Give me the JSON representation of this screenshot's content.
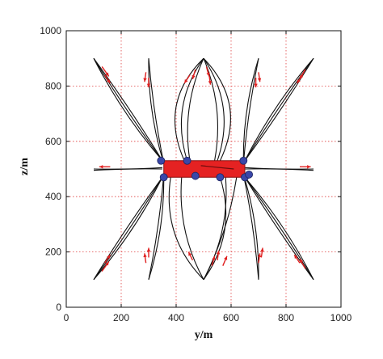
{
  "chart_data": {
    "type": "line",
    "title": "",
    "xlabel": "y/m",
    "ylabel": "z/m",
    "xlim": [
      0,
      1000
    ],
    "ylim": [
      0,
      1000
    ],
    "xticks": [
      0,
      200,
      400,
      600,
      800,
      1000
    ],
    "yticks": [
      0,
      200,
      400,
      600,
      800,
      1000
    ],
    "grid": true,
    "grid_style": "dotted",
    "grid_color": "#e04040",
    "trajectory_color": "#111111",
    "arrow_color": "#e02020",
    "platform_color": "#e52222",
    "node_color": "#3a47a8",
    "platform": {
      "y_min": 355,
      "y_max": 650,
      "z_min": 470,
      "z_max": 530
    },
    "nodes": [
      {
        "y": 345,
        "z": 530
      },
      {
        "y": 355,
        "z": 470
      },
      {
        "y": 440,
        "z": 530
      },
      {
        "y": 470,
        "z": 475
      },
      {
        "y": 560,
        "z": 470
      },
      {
        "y": 645,
        "z": 530
      },
      {
        "y": 650,
        "z": 470
      },
      {
        "y": 665,
        "z": 480
      }
    ],
    "series": [
      {
        "start": [
          350,
          530
        ],
        "end": [
          100,
          900
        ],
        "bulge": 0.06
      },
      {
        "start": [
          350,
          530
        ],
        "end": [
          100,
          900
        ],
        "bulge": 0.02
      },
      {
        "start": [
          350,
          530
        ],
        "end": [
          100,
          900
        ],
        "bulge": -0.02
      },
      {
        "start": [
          350,
          470
        ],
        "end": [
          100,
          100
        ],
        "bulge": 0.06
      },
      {
        "start": [
          350,
          470
        ],
        "end": [
          100,
          100
        ],
        "bulge": 0.02
      },
      {
        "start": [
          350,
          470
        ],
        "end": [
          100,
          100
        ],
        "bulge": -0.02
      },
      {
        "start": [
          650,
          530
        ],
        "end": [
          900,
          900
        ],
        "bulge": 0.06
      },
      {
        "start": [
          650,
          530
        ],
        "end": [
          900,
          900
        ],
        "bulge": 0.02
      },
      {
        "start": [
          650,
          530
        ],
        "end": [
          900,
          900
        ],
        "bulge": -0.02
      },
      {
        "start": [
          650,
          470
        ],
        "end": [
          900,
          100
        ],
        "bulge": 0.06
      },
      {
        "start": [
          650,
          470
        ],
        "end": [
          900,
          100
        ],
        "bulge": 0.02
      },
      {
        "start": [
          650,
          470
        ],
        "end": [
          900,
          100
        ],
        "bulge": -0.02
      },
      {
        "start": [
          355,
          520
        ],
        "end": [
          300,
          900
        ],
        "bulge": 0.08
      },
      {
        "start": [
          355,
          520
        ],
        "end": [
          300,
          900
        ],
        "bulge": 0.03
      },
      {
        "start": [
          355,
          480
        ],
        "end": [
          300,
          100
        ],
        "bulge": 0.08
      },
      {
        "start": [
          355,
          480
        ],
        "end": [
          300,
          100
        ],
        "bulge": 0.03
      },
      {
        "start": [
          645,
          520
        ],
        "end": [
          700,
          900
        ],
        "bulge": 0.08
      },
      {
        "start": [
          645,
          520
        ],
        "end": [
          700,
          900
        ],
        "bulge": 0.03
      },
      {
        "start": [
          645,
          480
        ],
        "end": [
          700,
          100
        ],
        "bulge": 0.08
      },
      {
        "start": [
          645,
          480
        ],
        "end": [
          700,
          100
        ],
        "bulge": 0.03
      },
      {
        "start": [
          430,
          530
        ],
        "end": [
          500,
          900
        ],
        "bulge": 0.35
      },
      {
        "start": [
          440,
          530
        ],
        "end": [
          500,
          900
        ],
        "bulge": 0.25
      },
      {
        "start": [
          450,
          530
        ],
        "end": [
          500,
          900
        ],
        "bulge": 0.15
      },
      {
        "start": [
          560,
          530
        ],
        "end": [
          500,
          900
        ],
        "bulge": -0.35
      },
      {
        "start": [
          550,
          530
        ],
        "end": [
          500,
          900
        ],
        "bulge": -0.25
      },
      {
        "start": [
          540,
          530
        ],
        "end": [
          500,
          900
        ],
        "bulge": -0.15
      },
      {
        "start": [
          380,
          470
        ],
        "end": [
          500,
          100
        ],
        "bulge": -0.25
      },
      {
        "start": [
          420,
          470
        ],
        "end": [
          500,
          100
        ],
        "bulge": -0.15
      },
      {
        "start": [
          560,
          470
        ],
        "end": [
          500,
          100
        ],
        "bulge": 0.25
      },
      {
        "start": [
          580,
          470
        ],
        "end": [
          500,
          100
        ],
        "bulge": 0.15
      },
      {
        "start": [
          620,
          470
        ],
        "end": [
          500,
          100
        ],
        "bulge": 0.08
      },
      {
        "start": [
          350,
          505
        ],
        "end": [
          100,
          500
        ],
        "bulge": 0.02
      },
      {
        "start": [
          350,
          500
        ],
        "end": [
          100,
          495
        ],
        "bulge": -0.02
      },
      {
        "start": [
          650,
          505
        ],
        "end": [
          900,
          500
        ],
        "bulge": -0.02
      },
      {
        "start": [
          650,
          500
        ],
        "end": [
          900,
          495
        ],
        "bulge": 0.02
      }
    ],
    "arrows": [
      {
        "y": 130,
        "z": 870,
        "dy": 25,
        "dz": -35
      },
      {
        "y": 140,
        "z": 840,
        "dy": 20,
        "dz": -30
      },
      {
        "y": 290,
        "z": 850,
        "dy": -5,
        "dz": -35
      },
      {
        "y": 300,
        "z": 830,
        "dy": 0,
        "dz": -35
      },
      {
        "y": 450,
        "z": 840,
        "dy": -20,
        "dz": -30
      },
      {
        "y": 470,
        "z": 860,
        "dy": -10,
        "dz": -35
      },
      {
        "y": 510,
        "z": 870,
        "dy": 10,
        "dz": -35
      },
      {
        "y": 520,
        "z": 840,
        "dy": 5,
        "dz": -35
      },
      {
        "y": 700,
        "z": 850,
        "dy": 5,
        "dz": -35
      },
      {
        "y": 690,
        "z": 830,
        "dy": 0,
        "dz": -35
      },
      {
        "y": 870,
        "z": 860,
        "dy": -20,
        "dz": -35
      },
      {
        "y": 860,
        "z": 840,
        "dy": -20,
        "dz": -30
      },
      {
        "y": 130,
        "z": 130,
        "dy": 25,
        "dz": 35
      },
      {
        "y": 140,
        "z": 160,
        "dy": 20,
        "dz": 30
      },
      {
        "y": 290,
        "z": 160,
        "dy": -5,
        "dz": 35
      },
      {
        "y": 300,
        "z": 180,
        "dy": 0,
        "dz": 35
      },
      {
        "y": 460,
        "z": 170,
        "dy": -15,
        "dz": 30
      },
      {
        "y": 530,
        "z": 150,
        "dy": 10,
        "dz": 35
      },
      {
        "y": 550,
        "z": 170,
        "dy": 5,
        "dz": 35
      },
      {
        "y": 570,
        "z": 150,
        "dy": 15,
        "dz": 35
      },
      {
        "y": 700,
        "z": 160,
        "dy": 5,
        "dz": 35
      },
      {
        "y": 710,
        "z": 180,
        "dy": 5,
        "dz": 35
      },
      {
        "y": 870,
        "z": 140,
        "dy": -20,
        "dz": 35
      },
      {
        "y": 850,
        "z": 160,
        "dy": -20,
        "dz": 30
      },
      {
        "y": 160,
        "z": 508,
        "dy": -40,
        "dz": 0
      },
      {
        "y": 850,
        "z": 508,
        "dy": 40,
        "dz": 0
      },
      {
        "y": 520,
        "z": 505,
        "dy": 40,
        "dz": 0
      }
    ]
  }
}
